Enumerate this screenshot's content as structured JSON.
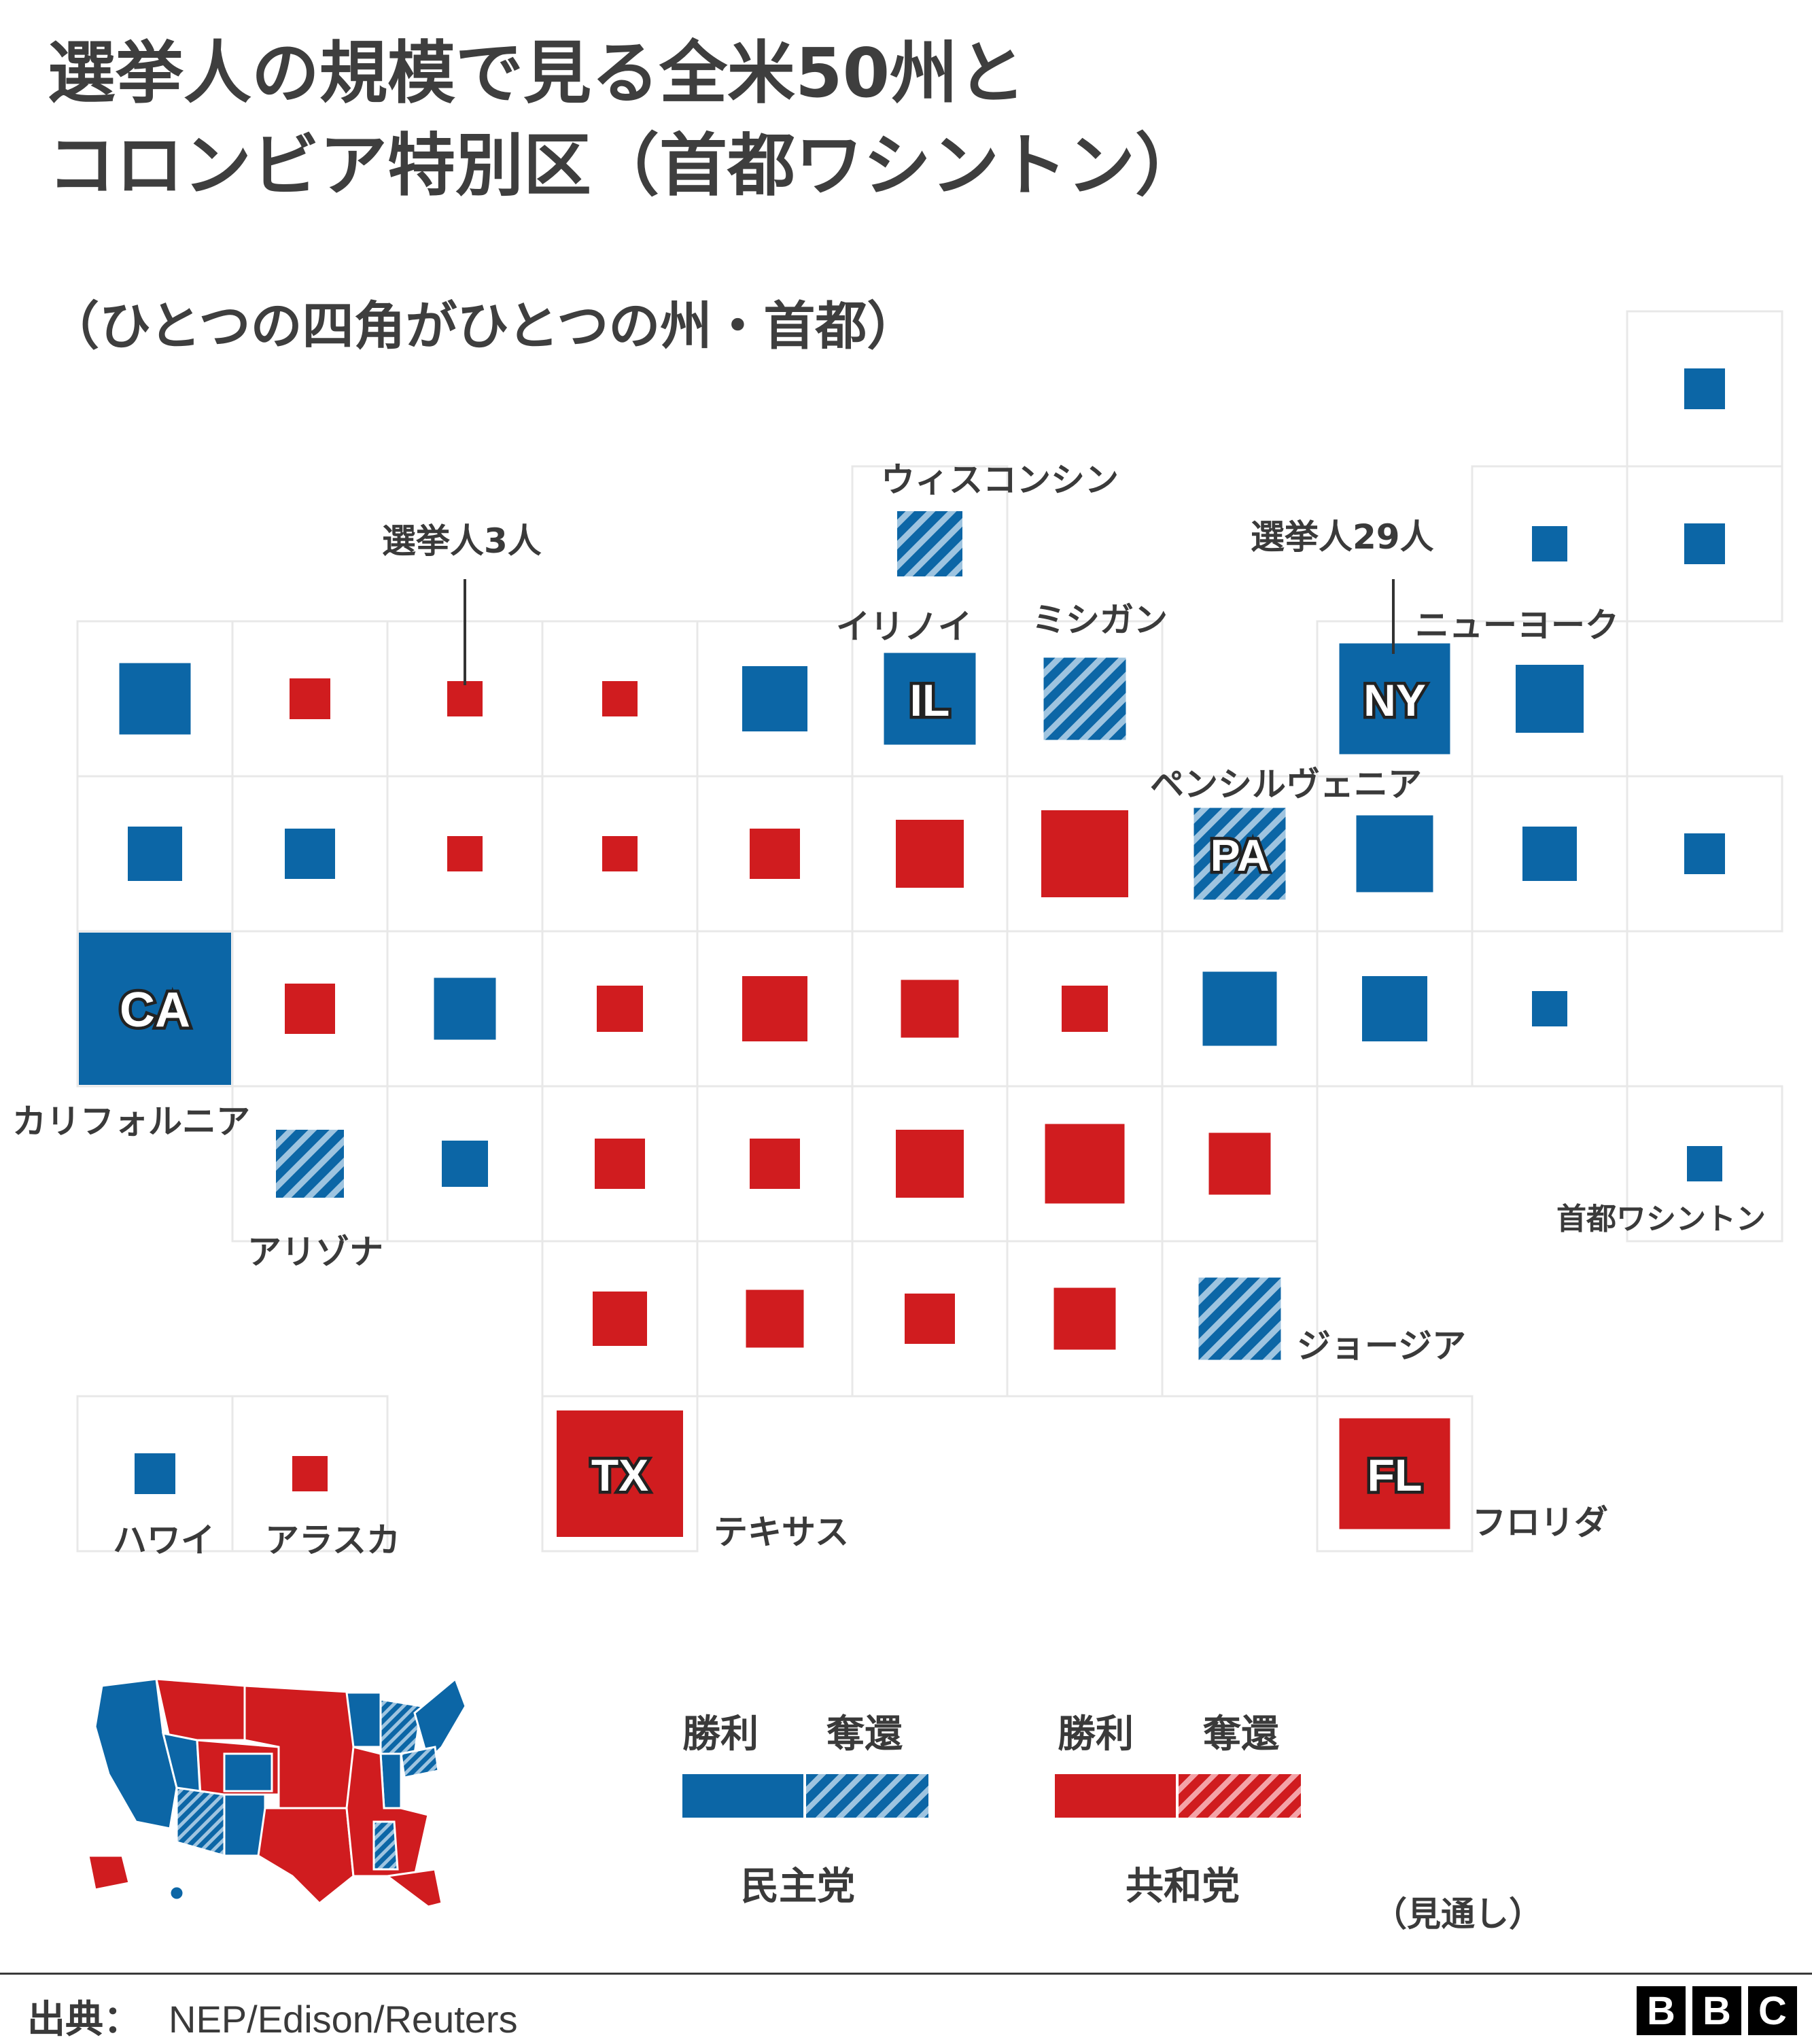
{
  "title": {
    "line1": "選挙人の規模で見る全米50州と",
    "line2": "コロンビア特別区（首都ワシントン）",
    "subtitle": "（ひとつの四角がひとつの州・首都）"
  },
  "colors": {
    "democrat": "#0c66a6",
    "democrat_flip_stripe": "#9ec4e0",
    "republican": "#d01c1f",
    "republican_flip_stripe": "#f4a3a8",
    "grid_line": "#e8e8e8",
    "text": "#3a3a3a"
  },
  "cells": [
    {
      "row": 0,
      "col": 10,
      "party": "dem",
      "flip": false,
      "electoral_votes": 4
    },
    {
      "row": 1,
      "col": 5,
      "party": "dem",
      "flip": true,
      "electoral_votes": 10
    },
    {
      "row": 1,
      "col": 9,
      "party": "dem",
      "flip": false,
      "electoral_votes": 3
    },
    {
      "row": 1,
      "col": 10,
      "party": "dem",
      "flip": false,
      "electoral_votes": 4
    },
    {
      "row": 2,
      "col": 0,
      "party": "dem",
      "flip": false,
      "electoral_votes": 12
    },
    {
      "row": 2,
      "col": 1,
      "party": "rep",
      "flip": false,
      "electoral_votes": 4
    },
    {
      "row": 2,
      "col": 2,
      "party": "rep",
      "flip": false,
      "electoral_votes": 3
    },
    {
      "row": 2,
      "col": 3,
      "party": "rep",
      "flip": false,
      "electoral_votes": 3
    },
    {
      "row": 2,
      "col": 4,
      "party": "dem",
      "flip": false,
      "electoral_votes": 10
    },
    {
      "row": 2,
      "col": 5,
      "party": "dem",
      "flip": false,
      "electoral_votes": 20,
      "label": "IL"
    },
    {
      "row": 2,
      "col": 6,
      "party": "dem",
      "flip": true,
      "electoral_votes": 16
    },
    {
      "row": 2,
      "col": 8,
      "party": "dem",
      "flip": false,
      "electoral_votes": 29,
      "label": "NY"
    },
    {
      "row": 2,
      "col": 9,
      "party": "dem",
      "flip": false,
      "electoral_votes": 11
    },
    {
      "row": 3,
      "col": 0,
      "party": "dem",
      "flip": false,
      "electoral_votes": 7
    },
    {
      "row": 3,
      "col": 1,
      "party": "dem",
      "flip": false,
      "electoral_votes": 6
    },
    {
      "row": 3,
      "col": 2,
      "party": "rep",
      "flip": false,
      "electoral_votes": 3
    },
    {
      "row": 3,
      "col": 3,
      "party": "rep",
      "flip": false,
      "electoral_votes": 3
    },
    {
      "row": 3,
      "col": 4,
      "party": "rep",
      "flip": false,
      "electoral_votes": 6
    },
    {
      "row": 3,
      "col": 5,
      "party": "rep",
      "flip": false,
      "electoral_votes": 11
    },
    {
      "row": 3,
      "col": 6,
      "party": "rep",
      "flip": false,
      "electoral_votes": 18
    },
    {
      "row": 3,
      "col": 7,
      "party": "dem",
      "flip": true,
      "electoral_votes": 20,
      "label": "PA"
    },
    {
      "row": 3,
      "col": 8,
      "party": "dem",
      "flip": false,
      "electoral_votes": 14
    },
    {
      "row": 3,
      "col": 9,
      "party": "dem",
      "flip": false,
      "electoral_votes": 7
    },
    {
      "row": 3,
      "col": 10,
      "party": "dem",
      "flip": false,
      "electoral_votes": 4
    },
    {
      "row": 4,
      "col": 0,
      "party": "dem",
      "flip": false,
      "electoral_votes": 55,
      "label": "CA"
    },
    {
      "row": 4,
      "col": 1,
      "party": "rep",
      "flip": false,
      "electoral_votes": 6
    },
    {
      "row": 4,
      "col": 2,
      "party": "dem",
      "flip": false,
      "electoral_votes": 9
    },
    {
      "row": 4,
      "col": 3,
      "party": "rep",
      "flip": false,
      "electoral_votes": 5
    },
    {
      "row": 4,
      "col": 4,
      "party": "rep",
      "flip": false,
      "electoral_votes": 10
    },
    {
      "row": 4,
      "col": 5,
      "party": "rep",
      "flip": false,
      "electoral_votes": 8
    },
    {
      "row": 4,
      "col": 6,
      "party": "rep",
      "flip": false,
      "electoral_votes": 5
    },
    {
      "row": 4,
      "col": 7,
      "party": "dem",
      "flip": false,
      "electoral_votes": 13
    },
    {
      "row": 4,
      "col": 8,
      "party": "dem",
      "flip": false,
      "electoral_votes": 10
    },
    {
      "row": 4,
      "col": 9,
      "party": "dem",
      "flip": false,
      "electoral_votes": 3
    },
    {
      "row": 5,
      "col": 1,
      "party": "dem",
      "flip": true,
      "electoral_votes": 11
    },
    {
      "row": 5,
      "col": 2,
      "party": "dem",
      "flip": false,
      "electoral_votes": 5
    },
    {
      "row": 5,
      "col": 3,
      "party": "rep",
      "flip": false,
      "electoral_votes": 6
    },
    {
      "row": 5,
      "col": 4,
      "party": "rep",
      "flip": false,
      "electoral_votes": 6
    },
    {
      "row": 5,
      "col": 5,
      "party": "rep",
      "flip": false,
      "electoral_votes": 11
    },
    {
      "row": 5,
      "col": 6,
      "party": "rep",
      "flip": false,
      "electoral_votes": 15
    },
    {
      "row": 5,
      "col": 7,
      "party": "rep",
      "flip": false,
      "electoral_votes": 9
    },
    {
      "row": 5,
      "col": 10,
      "party": "dem",
      "flip": false,
      "electoral_votes": 3
    },
    {
      "row": 6,
      "col": 3,
      "party": "rep",
      "flip": false,
      "electoral_votes": 7
    },
    {
      "row": 6,
      "col": 4,
      "party": "rep",
      "flip": false,
      "electoral_votes": 8
    },
    {
      "row": 6,
      "col": 5,
      "party": "rep",
      "flip": false,
      "electoral_votes": 6
    },
    {
      "row": 6,
      "col": 6,
      "party": "rep",
      "flip": false,
      "electoral_votes": 9
    },
    {
      "row": 6,
      "col": 7,
      "party": "dem",
      "flip": true,
      "electoral_votes": 16
    },
    {
      "row": 7,
      "col": 0,
      "party": "dem",
      "flip": false,
      "electoral_votes": 4
    },
    {
      "row": 7,
      "col": 1,
      "party": "rep",
      "flip": false,
      "electoral_votes": 3
    },
    {
      "row": 7,
      "col": 3,
      "party": "rep",
      "flip": false,
      "electoral_votes": 38,
      "label": "TX"
    },
    {
      "row": 7,
      "col": 8,
      "party": "rep",
      "flip": false,
      "electoral_votes": 29,
      "label": "FL"
    }
  ],
  "annotations": {
    "wisconsin": "ウィスコンシン",
    "electors_3": "選挙人3人",
    "electors_29": "選挙人29人",
    "illinois": "イリノイ",
    "michigan": "ミシガン",
    "new_york": "ニューヨーク",
    "pennsylvania": "ペンシルヴェニア",
    "california": "カリフォルニア",
    "arizona": "アリゾナ",
    "washington_dc": "首都ワシントン",
    "georgia": "ジョージア",
    "hawaii": "ハワイ",
    "alaska": "アラスカ",
    "texas": "テキサス",
    "florida": "フロリダ"
  },
  "legend": {
    "win": "勝利",
    "flip": "奪還",
    "democrat": "民主党",
    "republican": "共和党",
    "note": "（見通し）"
  },
  "footer": {
    "source_label": "出典：",
    "source": "NEP/Edison/Reuters",
    "logo": [
      "B",
      "B",
      "C"
    ]
  }
}
